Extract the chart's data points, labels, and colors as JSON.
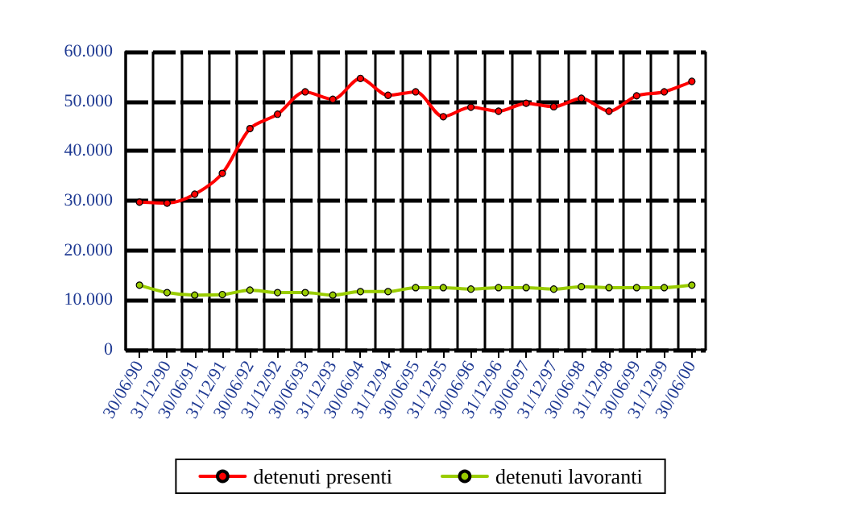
{
  "chart_data": {
    "type": "line",
    "categories": [
      "30/06/90",
      "31/12/90",
      "30/06/91",
      "31/12/91",
      "30/06/92",
      "31/12/92",
      "30/06/93",
      "31/12/93",
      "30/06/94",
      "31/12/94",
      "30/06/95",
      "31/12/95",
      "30/06/96",
      "31/12/96",
      "30/06/97",
      "31/12/97",
      "30/06/98",
      "31/12/98",
      "30/06/99",
      "31/12/99",
      "30/06/00"
    ],
    "series": [
      {
        "name": "detenuti presenti",
        "color": "#ff0000",
        "values": [
          29700,
          29500,
          31300,
          35500,
          44500,
          47400,
          51900,
          50400,
          54600,
          51200,
          51900,
          46900,
          48800,
          48000,
          49600,
          48900,
          50600,
          48000,
          51100,
          51900,
          54000
        ]
      },
      {
        "name": "detenuti lavoranti",
        "color": "#99cc00",
        "values": [
          13000,
          11500,
          11000,
          11100,
          12000,
          11500,
          11500,
          11000,
          11700,
          11700,
          12500,
          12500,
          12200,
          12500,
          12500,
          12200,
          12700,
          12500,
          12500,
          12500,
          13000
        ]
      }
    ],
    "ylim": [
      0,
      60000
    ],
    "yticks": [
      {
        "value": 0,
        "label": "0"
      },
      {
        "value": 10000,
        "label": "10.000"
      },
      {
        "value": 20000,
        "label": "20.000"
      },
      {
        "value": 30000,
        "label": "30.000"
      },
      {
        "value": 40000,
        "label": "40.000"
      },
      {
        "value": 50000,
        "label": "50.000"
      },
      {
        "value": 60000,
        "label": "60.000"
      }
    ],
    "grid": true,
    "legend": "bottom",
    "marker": "circle",
    "line_style": "solid"
  }
}
